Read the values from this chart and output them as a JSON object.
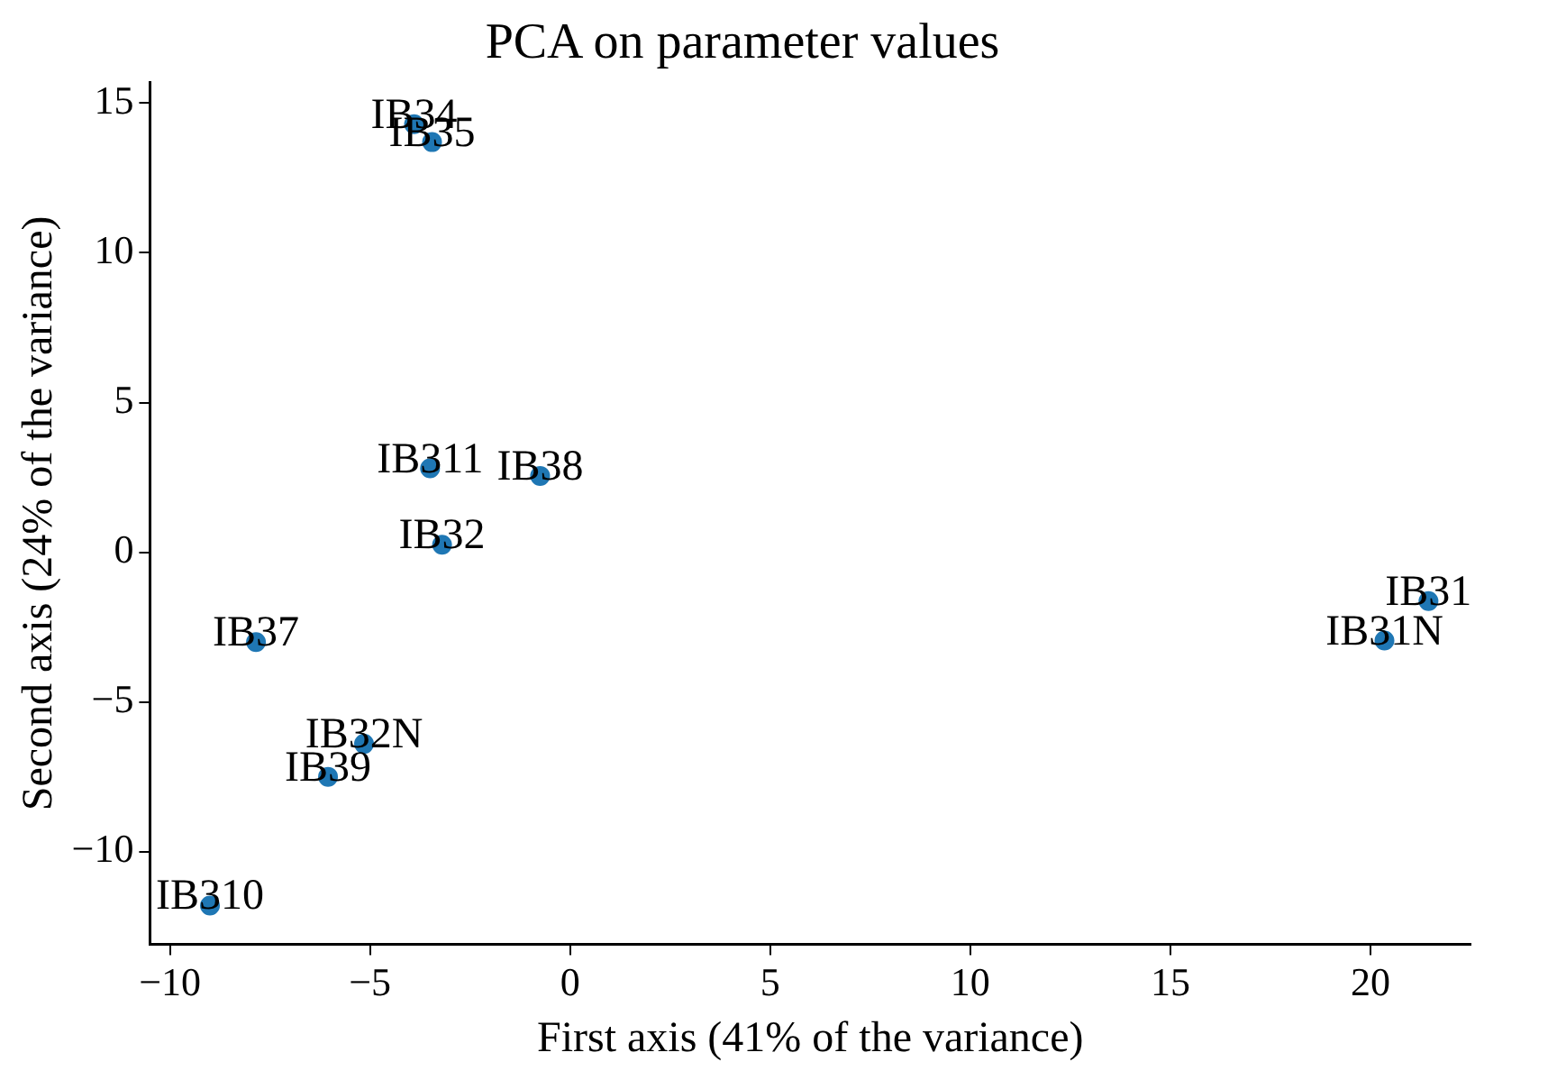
{
  "chart_data": {
    "type": "scatter",
    "title": "PCA on parameter values",
    "xlabel": "First axis (41% of the variance)",
    "ylabel": "Second axis (24% of the variance)",
    "x": [
      -3.9,
      -3.45,
      -3.5,
      -0.75,
      -3.2,
      -7.85,
      -5.15,
      -6.05,
      -9.0,
      21.45,
      20.35
    ],
    "series": [
      {
        "color": "#1f77b4",
        "values": [
          14.3,
          13.7,
          2.8,
          2.55,
          0.25,
          -3.0,
          -6.4,
          -7.5,
          -11.8,
          -1.63,
          -2.95
        ]
      }
    ],
    "annotations": [
      {
        "text": "IB34",
        "x": -3.9,
        "y": 14.3
      },
      {
        "text": "IB35",
        "x": -3.45,
        "y": 13.7
      },
      {
        "text": "IB311",
        "x": -3.5,
        "y": 2.8
      },
      {
        "text": "IB38",
        "x": -0.75,
        "y": 2.55
      },
      {
        "text": "IB32",
        "x": -3.2,
        "y": 0.25
      },
      {
        "text": "IB37",
        "x": -7.85,
        "y": -3.0
      },
      {
        "text": "IB32N",
        "x": -5.15,
        "y": -6.4
      },
      {
        "text": "IB39",
        "x": -6.05,
        "y": -7.5
      },
      {
        "text": "IB310",
        "x": -9.0,
        "y": -11.8
      },
      {
        "text": "IB31",
        "x": 21.45,
        "y": -1.63
      },
      {
        "text": "IB31N",
        "x": 20.35,
        "y": -2.95
      }
    ],
    "xlim": [
      -10.5,
      22.5
    ],
    "ylim": [
      -13.1,
      15.7
    ],
    "xticks": [
      -10,
      -5,
      0,
      5,
      10,
      15,
      20
    ],
    "yticks": [
      -10,
      -5,
      0,
      5,
      10,
      15
    ],
    "marker": "circle",
    "grid": false,
    "legend": false
  }
}
